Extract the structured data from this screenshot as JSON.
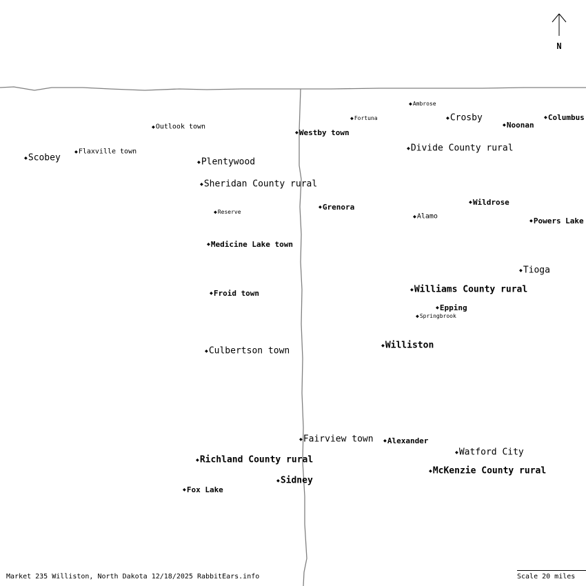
{
  "north_label": "N",
  "footer_text": "Market 235 Williston, North Dakota 12/18/2025 RabbitEars.info",
  "scale_label": "Scale 20 miles",
  "places": [
    {
      "id": "ambrose",
      "name": "Ambrose",
      "size": 1,
      "bold": false
    },
    {
      "id": "fortuna",
      "name": "Fortuna",
      "size": 1,
      "bold": false
    },
    {
      "id": "crosby",
      "name": "Crosby",
      "size": 4,
      "bold": false
    },
    {
      "id": "noonan",
      "name": "Noonan",
      "size": 3,
      "bold": true
    },
    {
      "id": "columbus",
      "name": "Columbus",
      "size": 3,
      "bold": true
    },
    {
      "id": "outlook",
      "name": "Outlook town",
      "size": 2,
      "bold": false
    },
    {
      "id": "westby",
      "name": "Westby town",
      "size": 3,
      "bold": true
    },
    {
      "id": "divide",
      "name": "Divide County rural",
      "size": 4,
      "bold": false
    },
    {
      "id": "flaxville",
      "name": "Flaxville town",
      "size": 2,
      "bold": false
    },
    {
      "id": "scobey",
      "name": "Scobey",
      "size": 4,
      "bold": false
    },
    {
      "id": "plentywood",
      "name": "Plentywood",
      "size": 4,
      "bold": false
    },
    {
      "id": "sheridan",
      "name": "Sheridan County rural",
      "size": 4,
      "bold": false
    },
    {
      "id": "grenora",
      "name": "Grenora",
      "size": 3,
      "bold": true
    },
    {
      "id": "wildrose",
      "name": "Wildrose",
      "size": 3,
      "bold": true
    },
    {
      "id": "reserve",
      "name": "Reserve",
      "size": 1,
      "bold": false
    },
    {
      "id": "alamo",
      "name": "Alamo",
      "size": 2,
      "bold": false
    },
    {
      "id": "powers-lake",
      "name": "Powers Lake",
      "size": 3,
      "bold": true
    },
    {
      "id": "medicine-lake",
      "name": "Medicine Lake town",
      "size": 3,
      "bold": true
    },
    {
      "id": "tioga",
      "name": "Tioga",
      "size": 4,
      "bold": false
    },
    {
      "id": "williams",
      "name": "Williams County rural",
      "size": 4,
      "bold": true
    },
    {
      "id": "froid",
      "name": "Froid town",
      "size": 3,
      "bold": true
    },
    {
      "id": "epping",
      "name": "Epping",
      "size": 3,
      "bold": true
    },
    {
      "id": "springbrook",
      "name": "Springbrook",
      "size": 1,
      "bold": false
    },
    {
      "id": "williston",
      "name": "Williston",
      "size": 4,
      "bold": true
    },
    {
      "id": "culbertson",
      "name": "Culbertson town",
      "size": 4,
      "bold": false
    },
    {
      "id": "fairview",
      "name": "Fairview town",
      "size": 4,
      "bold": false
    },
    {
      "id": "alexander",
      "name": "Alexander",
      "size": 3,
      "bold": true
    },
    {
      "id": "watford-city",
      "name": "Watford City",
      "size": 4,
      "bold": false
    },
    {
      "id": "richland",
      "name": "Richland County rural",
      "size": 4,
      "bold": true
    },
    {
      "id": "mckenzie",
      "name": "McKenzie County rural",
      "size": 4,
      "bold": true
    },
    {
      "id": "sidney",
      "name": "Sidney",
      "size": 4,
      "bold": true
    },
    {
      "id": "fox-lake",
      "name": "Fox Lake",
      "size": 3,
      "bold": true
    }
  ]
}
